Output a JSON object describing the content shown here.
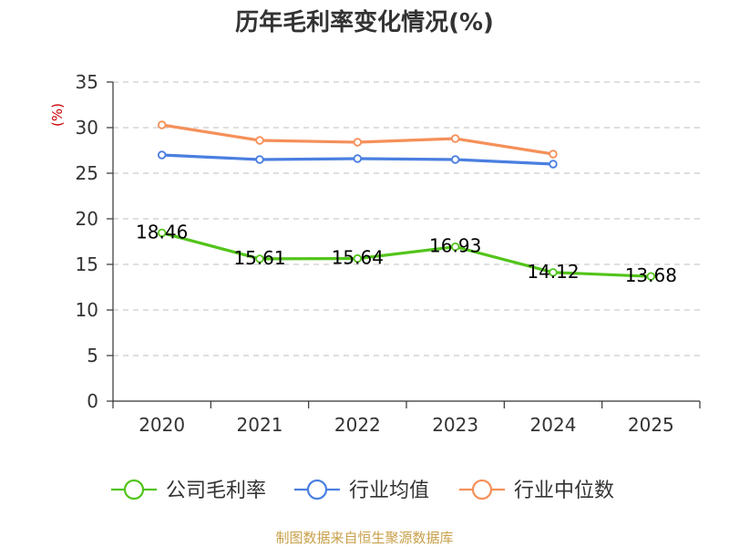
{
  "chart_data": {
    "type": "line",
    "title": "历年毛利率变化情况(%)",
    "ylabel": "(%)",
    "xlabel": "",
    "categories": [
      "2020",
      "2021",
      "2022",
      "2023",
      "2024",
      "2025"
    ],
    "ylim": [
      0,
      35
    ],
    "yticks": [
      0,
      5,
      10,
      15,
      20,
      25,
      30,
      35
    ],
    "grid": true,
    "legend_position": "bottom",
    "series": [
      {
        "name": "公司毛利率",
        "color": "#52c41a",
        "labels": [
          "18.46",
          "15.61",
          "15.64",
          "16.93",
          "14.12",
          "13.68"
        ],
        "values": [
          18.46,
          15.61,
          15.64,
          16.93,
          14.12,
          13.68
        ]
      },
      {
        "name": "行业均值",
        "color": "#4a7fe0",
        "labels": [],
        "values": [
          27.0,
          26.5,
          26.6,
          26.5,
          26.0,
          null
        ]
      },
      {
        "name": "行业中位数",
        "color": "#f5905a",
        "labels": [],
        "values": [
          30.3,
          28.6,
          28.4,
          28.8,
          27.1,
          null
        ]
      }
    ]
  },
  "source": "制图数据来自恒生聚源数据库",
  "colors": {
    "axis": "#333333",
    "grid": "#cccccc",
    "ylabel": "#cc0000",
    "source": "#c8a04a"
  }
}
